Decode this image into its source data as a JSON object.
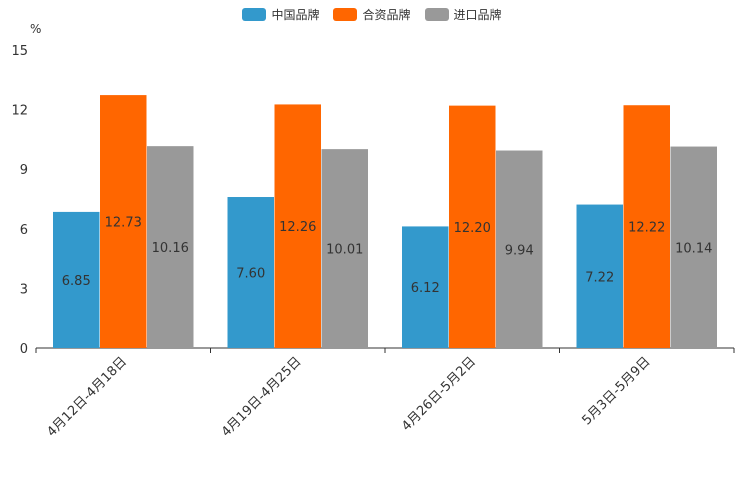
{
  "chart_data": {
    "type": "bar",
    "unit": "%",
    "categories": [
      "4月12日-4月18日",
      "4月19日-4月25日",
      "4月26日-5月2日",
      "5月3日-5月9日"
    ],
    "series": [
      {
        "name": "中国品牌",
        "color": "#3399cc",
        "values": [
          6.85,
          7.6,
          6.12,
          7.22
        ],
        "labels": [
          "6.85",
          "7.60",
          "6.12",
          "7.22"
        ]
      },
      {
        "name": "合资品牌",
        "color": "#ff6600",
        "values": [
          12.73,
          12.26,
          12.2,
          12.22
        ],
        "labels": [
          "12.73",
          "12.26",
          "12.20",
          "12.22"
        ]
      },
      {
        "name": "进口品牌",
        "color": "#999999",
        "values": [
          10.16,
          10.01,
          9.94,
          10.14
        ],
        "labels": [
          "10.16",
          "10.01",
          "9.94",
          "10.14"
        ]
      }
    ],
    "ylim": [
      0,
      15
    ],
    "yticks": [
      "0",
      "3",
      "6",
      "9",
      "12",
      "15"
    ],
    "legend_position": "top-center",
    "grid": false
  }
}
